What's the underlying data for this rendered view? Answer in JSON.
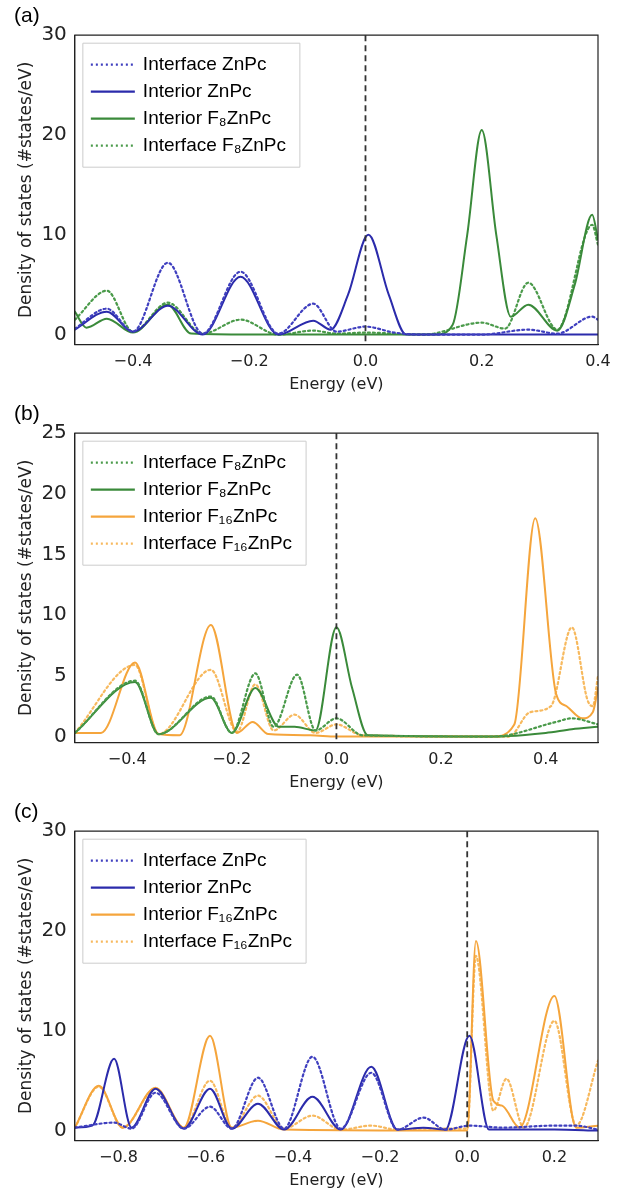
{
  "chart_data": [
    {
      "type": "line",
      "title": "(a)",
      "xlabel": "Energy (eV)",
      "ylabel": "Density of states (#states/eV)",
      "xlim": [
        -0.5,
        0.4
      ],
      "xticks": [
        {
          "value": -0.4,
          "label": "−0.4"
        },
        {
          "value": -0.2,
          "label": "−0.2"
        },
        {
          "value": 0,
          "label": "0.0"
        },
        {
          "value": 0.2,
          "label": "0.2"
        },
        {
          "value": 0.4,
          "label": "0.4"
        }
      ],
      "ylim": [
        -1,
        30
      ],
      "yticks": [
        0,
        10,
        20,
        30
      ],
      "grid": false,
      "legend": "top left",
      "marker": "none",
      "ref_lines": [
        {
          "axis": "x",
          "value": 0,
          "color": "#333333",
          "line_style": "dashed"
        }
      ],
      "series": [
        {
          "name": "Interface ZnPc",
          "color": "#3f3fbf",
          "line_style": "dotted",
          "x": [
            -0.5,
            -0.445,
            -0.4,
            -0.34,
            -0.28,
            -0.215,
            -0.15,
            -0.09,
            -0.05,
            0.0,
            0.05,
            0.1,
            0.2,
            0.28,
            0.33,
            0.39,
            0.4
          ],
          "values": [
            0.6,
            2.6,
            0.3,
            7.2,
            0.1,
            6.3,
            0.1,
            3.1,
            0.3,
            0.8,
            0.2,
            0,
            0,
            0.5,
            0.1,
            1.8,
            1.5
          ]
        },
        {
          "name": "Interior ZnPc",
          "color": "#2b2bab",
          "line_style": "solid",
          "x": [
            -0.5,
            -0.445,
            -0.4,
            -0.34,
            -0.28,
            -0.215,
            -0.15,
            -0.09,
            -0.06,
            -0.03,
            0.005,
            0.04,
            0.07,
            0.2,
            0.4
          ],
          "values": [
            0.5,
            2.3,
            0.3,
            2.9,
            0,
            5.8,
            0,
            1.4,
            0.5,
            4,
            10,
            4,
            0,
            0,
            0
          ]
        },
        {
          "name": "Interior F₈ZnPc",
          "color": "#3a8a3a",
          "line_style": "solid",
          "x": [
            -0.5,
            -0.48,
            -0.445,
            -0.4,
            -0.34,
            -0.3,
            -0.2,
            0.0,
            0.12,
            0.15,
            0.175,
            0.2,
            0.225,
            0.25,
            0.28,
            0.33,
            0.36,
            0.39,
            0.4
          ],
          "values": [
            2.3,
            0.7,
            1.6,
            0.2,
            3.0,
            0.1,
            0,
            0,
            0,
            1,
            10,
            20.5,
            10,
            1.8,
            3.0,
            0.4,
            5,
            12,
            9.5
          ]
        },
        {
          "name": "Interface F₈ZnPc",
          "color": "#4a9a4a",
          "line_style": "dotted",
          "x": [
            -0.5,
            -0.445,
            -0.4,
            -0.34,
            -0.28,
            -0.215,
            -0.15,
            -0.09,
            -0.05,
            0.0,
            0.1,
            0.2,
            0.24,
            0.28,
            0.33,
            0.39,
            0.4
          ],
          "values": [
            1.5,
            4.4,
            0.3,
            3.2,
            0.1,
            1.5,
            0,
            0.4,
            0.1,
            0.2,
            0,
            1.2,
            0.6,
            5.2,
            0.5,
            11,
            9
          ]
        }
      ]
    },
    {
      "type": "line",
      "title": "(b)",
      "xlabel": "Energy (eV)",
      "ylabel": "Density of states (#states/eV)",
      "xlim": [
        -0.5,
        0.5
      ],
      "xticks": [
        {
          "value": -0.4,
          "label": "−0.4"
        },
        {
          "value": -0.2,
          "label": "−0.2"
        },
        {
          "value": 0,
          "label": "0.0"
        },
        {
          "value": 0.2,
          "label": "0.2"
        },
        {
          "value": 0.4,
          "label": "0.4"
        }
      ],
      "ylim": [
        -0.5,
        25
      ],
      "yticks": [
        0,
        5,
        10,
        15,
        20,
        25
      ],
      "grid": false,
      "legend": "top left",
      "marker": "none",
      "ref_lines": [
        {
          "axis": "x",
          "value": 0,
          "color": "#333333",
          "line_style": "dashed"
        }
      ],
      "series": [
        {
          "name": "Interface F₈ZnPc",
          "color": "#4a9a4a",
          "line_style": "dotted",
          "x": [
            -0.5,
            -0.385,
            -0.34,
            -0.24,
            -0.2,
            -0.155,
            -0.12,
            -0.075,
            -0.04,
            0.0,
            0.05,
            0.3,
            0.42,
            0.45,
            0.5
          ],
          "values": [
            0.3,
            4.6,
            0.2,
            3.3,
            0.3,
            5.2,
            0.8,
            5.1,
            0.5,
            1.5,
            0.1,
            0,
            1.2,
            1.5,
            1
          ]
        },
        {
          "name": "Interior F₈ZnPc",
          "color": "#3a8a3a",
          "line_style": "solid",
          "x": [
            -0.5,
            -0.385,
            -0.34,
            -0.24,
            -0.2,
            -0.155,
            -0.11,
            -0.08,
            -0.04,
            0.0,
            0.03,
            0.06,
            0.3,
            0.4,
            0.45,
            0.5
          ],
          "values": [
            0.3,
            4.5,
            0.2,
            3.2,
            0.3,
            4.0,
            0.8,
            0.8,
            0.5,
            9.0,
            4,
            0.1,
            0,
            0.3,
            0.6,
            0.8
          ]
        },
        {
          "name": "Interior F₁₆ZnPc",
          "color": "#f5a53c",
          "line_style": "solid",
          "x": [
            -0.5,
            -0.45,
            -0.385,
            -0.34,
            -0.3,
            -0.24,
            -0.19,
            -0.16,
            -0.13,
            -0.05,
            0.0,
            0.3,
            0.34,
            0.38,
            0.42,
            0.44,
            0.47,
            0.49,
            0.5
          ],
          "values": [
            0.3,
            0.3,
            6.1,
            0.2,
            0.1,
            9.2,
            0.3,
            1.2,
            0.2,
            0.1,
            0,
            0,
            1,
            18,
            3.5,
            2.5,
            1.5,
            2,
            4
          ]
        },
        {
          "name": "Interface F₁₆ZnPc",
          "color": "#f7b95e",
          "line_style": "dotted",
          "x": [
            -0.5,
            -0.385,
            -0.34,
            -0.24,
            -0.19,
            -0.155,
            -0.12,
            -0.08,
            -0.04,
            0.0,
            0.05,
            0.33,
            0.37,
            0.41,
            0.45,
            0.48,
            0.49,
            0.5
          ],
          "values": [
            0.3,
            5.9,
            0.2,
            5.5,
            0.4,
            4.3,
            0.5,
            1.8,
            0.3,
            1.0,
            0.1,
            0,
            2,
            2.5,
            9,
            3,
            2.5,
            5
          ]
        }
      ]
    },
    {
      "type": "line",
      "title": "(c)",
      "xlabel": "Energy (eV)",
      "ylabel": "Density of states (#states/eV)",
      "xlim": [
        -0.9,
        0.3
      ],
      "xticks": [
        {
          "value": -0.8,
          "label": "−0.8"
        },
        {
          "value": -0.6,
          "label": "−0.6"
        },
        {
          "value": -0.4,
          "label": "−0.4"
        },
        {
          "value": -0.2,
          "label": "−0.2"
        },
        {
          "value": 0,
          "label": "0.0"
        },
        {
          "value": 0.2,
          "label": "0.2"
        }
      ],
      "ylim": [
        -1,
        30
      ],
      "yticks": [
        0,
        10,
        20,
        30
      ],
      "grid": false,
      "legend": "top left",
      "marker": "none",
      "ref_lines": [
        {
          "axis": "x",
          "value": 0,
          "color": "#333333",
          "line_style": "dashed"
        }
      ],
      "series": [
        {
          "name": "Interface ZnPc",
          "color": "#3f3fbf",
          "line_style": "dotted",
          "x": [
            -0.9,
            -0.81,
            -0.77,
            -0.715,
            -0.65,
            -0.59,
            -0.54,
            -0.48,
            -0.42,
            -0.355,
            -0.29,
            -0.22,
            -0.16,
            -0.1,
            -0.05,
            0.005,
            0.08,
            0.2,
            0.25,
            0.3
          ],
          "values": [
            0.3,
            0.8,
            0.2,
            3.8,
            0.2,
            2.4,
            0.2,
            5.3,
            0.2,
            7.4,
            0.2,
            5.8,
            0.1,
            1.3,
            0.1,
            0.5,
            0.3,
            0.5,
            0.5,
            0.1
          ]
        },
        {
          "name": "Interior ZnPc",
          "color": "#2b2bab",
          "line_style": "solid",
          "x": [
            -0.9,
            -0.86,
            -0.81,
            -0.77,
            -0.715,
            -0.65,
            -0.59,
            -0.54,
            -0.48,
            -0.42,
            -0.355,
            -0.29,
            -0.22,
            -0.16,
            -0.1,
            -0.05,
            0.005,
            0.05,
            0.2,
            0.3
          ],
          "values": [
            0.3,
            0.5,
            7.2,
            0.3,
            4.2,
            0.2,
            4.2,
            0.2,
            2.7,
            0.1,
            3.4,
            0.1,
            6.4,
            0.1,
            0.3,
            0.1,
            9.5,
            0.1,
            0.1,
            0
          ]
        },
        {
          "name": "Interior F₁₆ZnPc",
          "color": "#f5a53c",
          "line_style": "solid",
          "x": [
            -0.9,
            -0.845,
            -0.79,
            -0.715,
            -0.65,
            -0.59,
            -0.54,
            -0.48,
            -0.42,
            -0.1,
            0.0,
            0.02,
            0.06,
            0.08,
            0.12,
            0.2,
            0.25,
            0.3
          ],
          "values": [
            0.3,
            4.5,
            0.3,
            4.3,
            0.3,
            9.5,
            0.3,
            1.0,
            0.1,
            0,
            0,
            19,
            3,
            2.5,
            0.3,
            13.5,
            0.3,
            0.5
          ]
        },
        {
          "name": "Interface F₁₆ZnPc",
          "color": "#f7b95e",
          "line_style": "dotted",
          "x": [
            -0.9,
            -0.845,
            -0.79,
            -0.715,
            -0.65,
            -0.59,
            -0.54,
            -0.48,
            -0.42,
            -0.355,
            -0.29,
            -0.22,
            -0.16,
            -0.1,
            0.0,
            0.02,
            0.06,
            0.09,
            0.13,
            0.2,
            0.25,
            0.3
          ],
          "values": [
            0.3,
            4.4,
            0.3,
            4.2,
            0.3,
            5,
            0.3,
            3.5,
            0.2,
            1.5,
            0.1,
            0.5,
            0.1,
            0.2,
            0.2,
            17.5,
            2,
            5.2,
            0.3,
            11,
            0.5,
            7
          ]
        }
      ]
    }
  ]
}
